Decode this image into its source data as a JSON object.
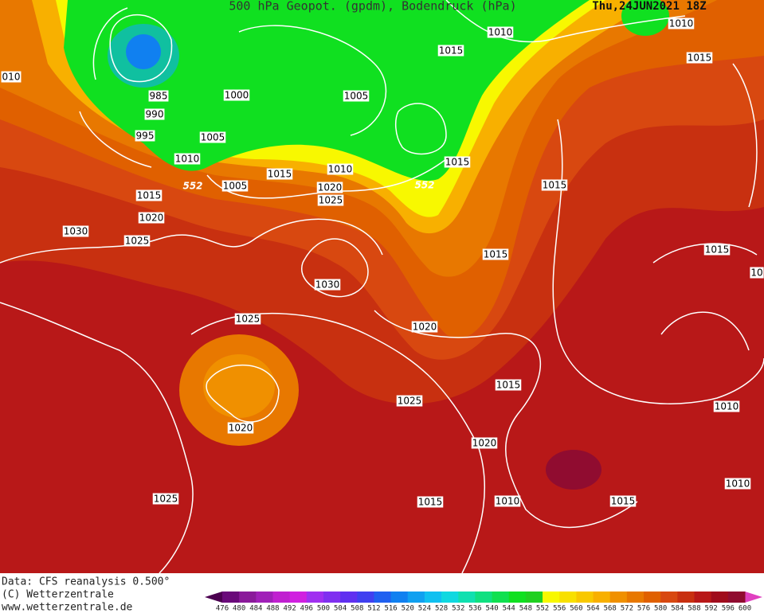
{
  "header": {
    "title": "500 hPa Geopot. (gpdm), Bodendruck (hPa)",
    "date": "Thu,24JUN2021 18Z"
  },
  "contour_labels": [
    "1010",
    "1010",
    "1015",
    "1015",
    "010",
    "985",
    "1000",
    "1005",
    "990",
    "995",
    "1005",
    "1010",
    "1015",
    "1015",
    "1010",
    "552",
    "1005",
    "1020",
    "552",
    "1015",
    "1015",
    "1025",
    "1020",
    "1030",
    "1025",
    "1015",
    "1015",
    "10",
    "1030",
    "1025",
    "1020",
    "1015",
    "1025",
    "1010",
    "1020",
    "1020",
    "1010",
    "1025",
    "1015",
    "1010",
    "1015"
  ],
  "footer": [
    "Data: CFS reanalysis 0.500°",
    "(C) Wetterzentrale",
    "www.wetterzentrale.de"
  ],
  "legend": {
    "values": [
      476,
      480,
      484,
      488,
      492,
      496,
      500,
      504,
      508,
      512,
      516,
      520,
      524,
      528,
      532,
      536,
      540,
      544,
      548,
      552,
      556,
      560,
      564,
      568,
      572,
      576,
      580,
      584,
      588,
      592,
      596,
      600
    ],
    "colors": [
      "#4b0050",
      "#6a0a7a",
      "#8a1a9a",
      "#a020b8",
      "#c020d0",
      "#d020e0",
      "#a030f0",
      "#8030f0",
      "#6030f0",
      "#4040f0",
      "#2060f0",
      "#1080f0",
      "#10a0f0",
      "#10c0f0",
      "#10d8e0",
      "#10e0b0",
      "#10e080",
      "#10e050",
      "#10e020",
      "#20d020",
      "#f8f800",
      "#f8e000",
      "#f8c800",
      "#f8b000",
      "#f09000",
      "#e87800",
      "#e06000",
      "#d84810",
      "#c83010",
      "#b81818",
      "#a00c1c",
      "#900c30",
      "#e040c0"
    ]
  }
}
